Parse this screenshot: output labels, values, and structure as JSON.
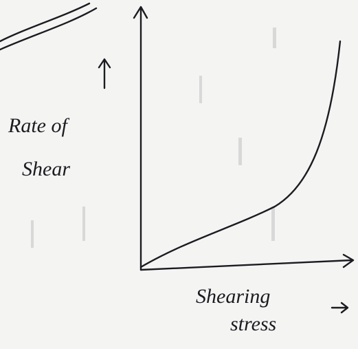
{
  "graph": {
    "y_axis_label": {
      "lines": [
        "Rate of",
        "Shear"
      ]
    },
    "x_axis_label": {
      "lines": [
        "Shearing",
        "stress"
      ]
    }
  }
}
